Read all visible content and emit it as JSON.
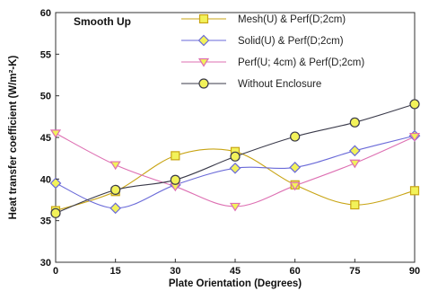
{
  "chart_data": {
    "type": "line",
    "annotation": "Smooth Up",
    "xlabel": "Plate Orientation (Degrees)",
    "ylabel": "Heat transfer coefficient (W/m²-K)",
    "x": [
      0,
      15,
      30,
      45,
      60,
      75,
      90
    ],
    "xlim": [
      0,
      90
    ],
    "ylim": [
      30,
      60
    ],
    "x_ticks": [
      "0",
      "15",
      "30",
      "45",
      "60",
      "75",
      "90"
    ],
    "y_ticks": [
      "30",
      "35",
      "40",
      "45",
      "50",
      "55",
      "60"
    ],
    "grid": false,
    "legend_position": "top-right",
    "smooth": true,
    "series": [
      {
        "name": "Mesh(U) & Perf(D;2cm)",
        "values": [
          36.2,
          38.5,
          42.8,
          43.3,
          39.3,
          36.9,
          38.6
        ],
        "color": "#c8a414",
        "marker": "square"
      },
      {
        "name": "Solid(U) & Perf(D;2cm)",
        "values": [
          39.5,
          36.5,
          39.3,
          41.3,
          41.4,
          43.4,
          45.2
        ],
        "color": "#6a6ad8",
        "marker": "diamond"
      },
      {
        "name": "Perf(U; 4cm) & Perf(D;2cm)",
        "values": [
          45.5,
          41.7,
          39.1,
          36.7,
          39.2,
          41.9,
          45.1
        ],
        "color": "#dd6fb2",
        "marker": "triangle-down"
      },
      {
        "name": "Without Enclosure",
        "values": [
          35.9,
          38.7,
          39.9,
          42.7,
          45.1,
          46.8,
          49.0
        ],
        "color": "#3a3a4a",
        "marker": "circle"
      }
    ]
  }
}
